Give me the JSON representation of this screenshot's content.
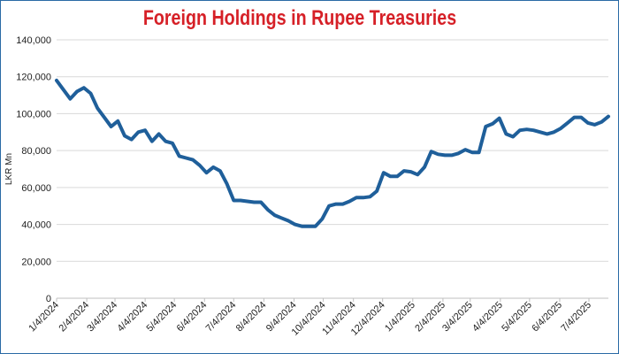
{
  "chart_data": {
    "type": "line",
    "title": "Foreign Holdings in Rupee Treasuries",
    "ylabel": "LKR Mn",
    "xlabel": "",
    "ylim": [
      0,
      140000
    ],
    "yticks": [
      "0",
      "20,000",
      "40,000",
      "60,000",
      "80,000",
      "100,000",
      "120,000",
      "140,000"
    ],
    "xticks": [
      "1/4/2024",
      "2/4/2024",
      "3/4/2024",
      "4/4/2024",
      "5/4/2024",
      "6/4/2024",
      "7/4/2024",
      "8/4/2024",
      "9/4/2024",
      "10/4/2024",
      "11/4/2024",
      "12/4/2024",
      "1/4/2025",
      "2/4/2025",
      "3/4/2025",
      "4/4/2025",
      "5/4/2025",
      "6/4/2025",
      "7/4/2025"
    ],
    "grid": true,
    "line_color": "#1f5f9a",
    "series": [
      {
        "x": [
          "1/4/2024",
          "1/11/2024",
          "1/18/2024",
          "1/25/2024",
          "2/1/2024",
          "2/8/2024",
          "2/15/2024",
          "2/22/2024",
          "2/29/2024",
          "3/7/2024",
          "3/14/2024",
          "3/21/2024",
          "3/28/2024",
          "4/4/2024",
          "4/11/2024",
          "4/18/2024",
          "4/25/2024",
          "5/2/2024",
          "5/9/2024",
          "5/16/2024",
          "5/23/2024",
          "5/30/2024",
          "6/6/2024",
          "6/13/2024",
          "6/20/2024",
          "6/27/2024",
          "7/4/2024",
          "7/11/2024",
          "7/18/2024",
          "7/25/2024",
          "8/1/2024",
          "8/8/2024",
          "8/15/2024",
          "8/22/2024",
          "8/29/2024",
          "9/5/2024",
          "9/12/2024",
          "9/19/2024",
          "9/26/2024",
          "10/3/2024",
          "10/10/2024",
          "10/17/2024",
          "10/24/2024",
          "10/31/2024",
          "11/7/2024",
          "11/14/2024",
          "11/21/2024",
          "11/28/2024",
          "12/5/2024",
          "12/12/2024",
          "12/19/2024",
          "12/26/2024",
          "1/2/2025",
          "1/9/2025",
          "1/16/2025",
          "1/23/2025",
          "1/30/2025",
          "2/6/2025",
          "2/13/2025",
          "2/20/2025",
          "2/27/2025",
          "3/6/2025",
          "3/13/2025",
          "3/20/2025",
          "3/27/2025",
          "4/3/2025",
          "4/10/2025",
          "4/17/2025",
          "4/24/2025",
          "5/1/2025",
          "5/8/2025",
          "5/15/2025",
          "5/22/2025",
          "5/29/2025",
          "6/5/2025",
          "6/12/2025",
          "6/19/2025",
          "6/26/2025",
          "7/3/2025",
          "7/10/2025",
          "7/17/2025",
          "7/24/2025"
        ],
        "y": [
          118000,
          113000,
          108000,
          112000,
          114000,
          111000,
          103000,
          98000,
          93000,
          96000,
          88000,
          86000,
          90000,
          91000,
          85000,
          89000,
          85000,
          84000,
          77000,
          76000,
          75000,
          72000,
          68000,
          71000,
          69000,
          62000,
          53000,
          53000,
          52500,
          52000,
          52000,
          48000,
          45000,
          43500,
          42000,
          40000,
          39000,
          39000,
          39000,
          43000,
          50000,
          51000,
          51000,
          52500,
          54500,
          54500,
          55000,
          58000,
          68000,
          66000,
          66000,
          69000,
          68500,
          67000,
          71000,
          79500,
          78000,
          77500,
          77500,
          78500,
          80500,
          79000,
          79000,
          93000,
          94500,
          97500,
          89000,
          87500,
          91000,
          91500,
          91000,
          90000,
          89000,
          90000,
          92000,
          95000,
          98000,
          98000,
          95000,
          94000,
          95500,
          98500
        ]
      }
    ]
  }
}
